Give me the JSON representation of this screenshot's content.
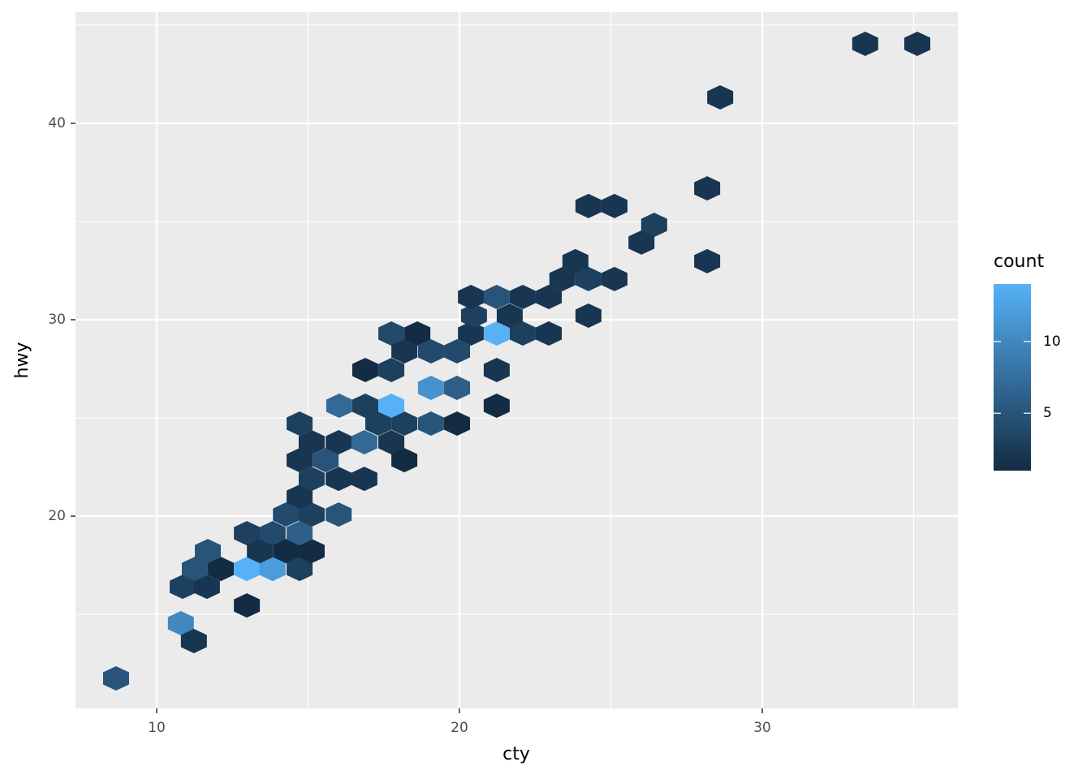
{
  "chart_data": {
    "type": "hexbin",
    "x_label": "cty",
    "y_label": "hwy",
    "legend_title": "count",
    "x": [
      8.66,
      10.8,
      11.23,
      12.98,
      10.86,
      11.66,
      11.26,
      12.12,
      11.69,
      12.98,
      13.83,
      14.72,
      13.41,
      14.27,
      15.12,
      12.98,
      13.83,
      14.72,
      14.27,
      15.12,
      16.01,
      14.72,
      15.12,
      16.01,
      16.86,
      14.72,
      15.58,
      15.12,
      16.01,
      16.86,
      17.75,
      18.18,
      14.72,
      17.32,
      18.18,
      19.06,
      19.92,
      16.03,
      16.89,
      17.75,
      19.06,
      19.92,
      21.23,
      16.89,
      17.75,
      21.23,
      17.75,
      18.61,
      18.18,
      19.06,
      19.92,
      20.38,
      21.23,
      22.09,
      22.95,
      20.48,
      21.66,
      20.38,
      21.23,
      22.09,
      22.95,
      23.4,
      24.26,
      25.12,
      23.83,
      24.26,
      26.01,
      26.43,
      24.26,
      25.12,
      28.18,
      28.18,
      28.61,
      33.4,
      35.12
    ],
    "y": [
      11.74,
      14.55,
      13.64,
      15.45,
      16.4,
      16.4,
      17.31,
      17.31,
      18.22,
      17.31,
      17.31,
      17.31,
      18.22,
      18.22,
      18.22,
      19.13,
      19.13,
      19.13,
      20.08,
      20.08,
      20.08,
      20.99,
      21.9,
      21.9,
      21.9,
      22.85,
      22.85,
      23.76,
      23.76,
      23.76,
      23.76,
      22.85,
      24.71,
      24.71,
      24.71,
      24.71,
      24.71,
      25.62,
      25.62,
      25.62,
      26.53,
      26.53,
      25.62,
      27.44,
      27.44,
      27.44,
      29.3,
      29.3,
      28.39,
      28.39,
      28.39,
      29.3,
      29.3,
      29.3,
      29.3,
      30.21,
      30.21,
      31.16,
      31.16,
      31.16,
      31.16,
      32.07,
      32.07,
      32.07,
      32.98,
      30.21,
      33.93,
      34.83,
      35.79,
      35.79,
      36.69,
      32.98,
      41.32,
      44.05,
      44.05
    ],
    "values": [
      5,
      10,
      2,
      1,
      3,
      2,
      5,
      1,
      5,
      14,
      12,
      3,
      2,
      1,
      1,
      3,
      4,
      6,
      4,
      3,
      5,
      2,
      3,
      2,
      2,
      2,
      5,
      2,
      2,
      7,
      2,
      1,
      3,
      3,
      3,
      5,
      1,
      7,
      3,
      14,
      11,
      6,
      1,
      1,
      3,
      2,
      4,
      1,
      2,
      4,
      4,
      2,
      14,
      3,
      2,
      3,
      2,
      2,
      5,
      2,
      2,
      2,
      3,
      2,
      2,
      2,
      2,
      3,
      2,
      2,
      2,
      2,
      2,
      2,
      2
    ],
    "xlim": [
      7.32,
      36.46
    ],
    "ylim": [
      10.21,
      45.66
    ],
    "xticks": [
      10,
      20,
      30
    ],
    "yticks": [
      20,
      30,
      40
    ],
    "color_range": [
      1,
      14
    ],
    "color_low": "#132B43",
    "color_high": "#56B1F7",
    "legend_ticks": [
      5,
      10
    ],
    "grid": true,
    "minor_grid": true
  }
}
